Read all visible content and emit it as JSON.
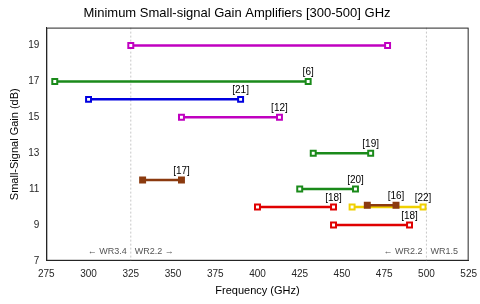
{
  "chart_data": {
    "type": "line",
    "title": "Minimum Small-signal Gain Amplifiers [300-500] GHz",
    "x_label": "Frequency (GHz)",
    "y_label": "Small-Signal Gain (dB)",
    "xlim": [
      275,
      525
    ],
    "xticks": [
      275,
      300,
      325,
      350,
      375,
      400,
      425,
      450,
      475,
      500,
      525
    ],
    "ylim": [
      7,
      20
    ],
    "yticks": [
      7,
      9,
      11,
      13,
      15,
      17,
      19
    ],
    "grid": false,
    "series": [
      {
        "color": "#c000c0",
        "marker": "square_open",
        "x": [
          325,
          477
        ],
        "values": [
          19,
          19
        ]
      },
      {
        "label": "[6]",
        "color": "#1a8a1a",
        "marker": "square_open",
        "x": [
          280,
          430
        ],
        "values": [
          17,
          17
        ]
      },
      {
        "label": "[21]",
        "color": "#0000e0",
        "marker": "square_open",
        "x": [
          300,
          390
        ],
        "values": [
          16,
          16
        ]
      },
      {
        "label": "[12]",
        "color": "#c000c0",
        "marker": "square_open",
        "x": [
          355,
          413
        ],
        "values": [
          15,
          15
        ]
      },
      {
        "label": "[17]",
        "color": "#8b3a0f",
        "marker": "square_filled",
        "x": [
          332,
          355
        ],
        "values": [
          11.5,
          11.5
        ]
      },
      {
        "label": "[19]",
        "color": "#1a8a1a",
        "marker": "square_open",
        "x": [
          433,
          467
        ],
        "values": [
          13,
          13
        ]
      },
      {
        "label": "[20]",
        "color": "#1a8a1a",
        "marker": "square_open",
        "x": [
          425,
          458
        ],
        "values": [
          11,
          11
        ]
      },
      {
        "label": "[18]",
        "color": "#e00000",
        "marker": "square_open",
        "x": [
          400,
          445
        ],
        "values": [
          10,
          10
        ]
      },
      {
        "label": "[16]",
        "color": "#8b3a0f",
        "marker": "square_filled",
        "x": [
          465,
          482
        ],
        "values": [
          10.1,
          10.1
        ]
      },
      {
        "label": "[22]",
        "color": "#f0d000",
        "marker": "square_open",
        "x": [
          456,
          498
        ],
        "values": [
          10,
          10
        ]
      },
      {
        "label": "[18]",
        "color": "#e00000",
        "marker": "square_open",
        "x": [
          445,
          490
        ],
        "values": [
          9,
          9
        ]
      }
    ],
    "band_edges": [
      {
        "x": 325,
        "left_text": "← WR3.4",
        "right_text": "WR2.2 →"
      },
      {
        "x": 500,
        "left_text": "← WR2.2",
        "right_text": "WR1.5"
      }
    ]
  }
}
